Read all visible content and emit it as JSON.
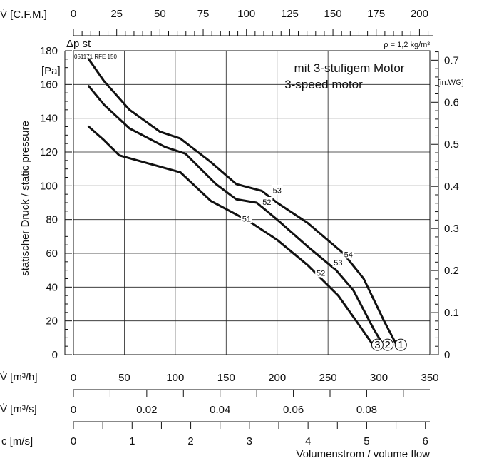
{
  "chart_data": {
    "type": "line",
    "top_axis": {
      "label": "V̇ [C.F.M.]",
      "ticks": [
        "0",
        "25",
        "50",
        "75",
        "100",
        "125",
        "150",
        "175",
        "200"
      ]
    },
    "ylabel": "statischer Druck / static pressure",
    "y_title": "Δp st",
    "y_unit": "[Pa]",
    "yticks": [
      "0",
      "20",
      "40",
      "60",
      "80",
      "100",
      "120",
      "140",
      "160",
      "180"
    ],
    "ylim": [
      0,
      180
    ],
    "y2_unit": "[in.WG]",
    "y2_ticks": [
      "0",
      "0.1",
      "0.2",
      "0.3",
      "0.4",
      "0.5",
      "0.6",
      "0.7"
    ],
    "x_unit": "V̇ [m³/h]",
    "xticks": [
      "0",
      "50",
      "100",
      "150",
      "200",
      "250",
      "300",
      "350"
    ],
    "xlim": [
      0,
      350
    ],
    "x2_unit": "V̇ [m³/s]",
    "x2_ticks": [
      "0",
      "0.02",
      "0.04",
      "0.06",
      "0.08"
    ],
    "x3_unit": "c [m/s]",
    "x3_ticks": [
      "0",
      "1",
      "2",
      "3",
      "4",
      "5",
      "6"
    ],
    "xlabel": "Volumenstrom / volume flow",
    "density": "ρ = 1,2 kg/m³",
    "model": "051171 RFE 150",
    "annotation": [
      "mit 3-stufigem Motor",
      "3-speed motor"
    ],
    "grid": true,
    "series": [
      {
        "name": "1",
        "x": [
          15,
          30,
          55,
          85,
          105,
          135,
          160,
          185,
          200,
          230,
          265,
          285,
          305,
          318
        ],
        "y": [
          175,
          162,
          145,
          132,
          128,
          114,
          101,
          97,
          90,
          78,
          60,
          45,
          20,
          5
        ],
        "labels": [
          {
            "x": 200,
            "y": 97,
            "text": "53"
          },
          {
            "x": 270,
            "y": 59,
            "text": "54"
          }
        ]
      },
      {
        "name": "2",
        "x": [
          15,
          30,
          55,
          90,
          110,
          140,
          160,
          180,
          200,
          230,
          258,
          275,
          295,
          305
        ],
        "y": [
          159,
          148,
          134,
          123,
          119,
          101,
          92,
          90,
          80,
          64,
          50,
          38,
          15,
          5
        ],
        "labels": [
          {
            "x": 190,
            "y": 90,
            "text": "52"
          },
          {
            "x": 260,
            "y": 54,
            "text": "53"
          }
        ]
      },
      {
        "name": "3",
        "x": [
          15,
          30,
          45,
          75,
          105,
          135,
          160,
          175,
          200,
          230,
          260,
          280,
          295
        ],
        "y": [
          135,
          127,
          118,
          113,
          108,
          91,
          83,
          78,
          68,
          53,
          35,
          18,
          5
        ],
        "labels": [
          {
            "x": 170,
            "y": 80,
            "text": "51"
          },
          {
            "x": 243,
            "y": 48,
            "text": "52"
          }
        ]
      }
    ]
  }
}
